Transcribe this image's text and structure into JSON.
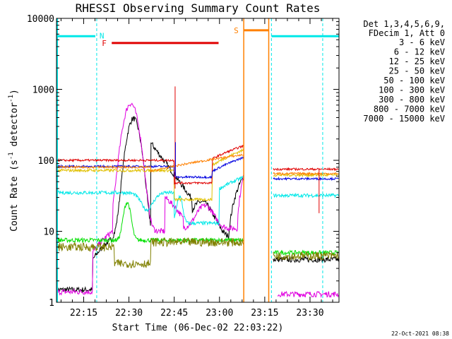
{
  "chart_data": {
    "type": "line",
    "title": "RHESSI Observing Summary Count Rates",
    "xlabel": "Start Time (06-Dec-02 22:03:22)",
    "ylabel": "Count Rate (s⁻¹ detector⁻¹)",
    "ylabel_parts": {
      "base": "Count Rate (s",
      "sup1": "-1",
      "mid": " detector",
      "sup2": "-1",
      "end": ")"
    },
    "yscale": "log",
    "ylim": [
      1,
      10000
    ],
    "xlim_minutes": [
      22.1,
      23.66
    ],
    "x_ticks": [
      {
        "label": "22:15",
        "m": 22.25
      },
      {
        "label": "22:30",
        "m": 22.5
      },
      {
        "label": "22:45",
        "m": 22.75
      },
      {
        "label": "23:00",
        "m": 23.0
      },
      {
        "label": "23:15",
        "m": 23.25
      },
      {
        "label": "23:30",
        "m": 23.5
      }
    ],
    "y_ticks": [
      {
        "label": "1",
        "v": 1
      },
      {
        "label": "10",
        "v": 10
      },
      {
        "label": "100",
        "v": 100
      },
      {
        "label": "1000",
        "v": 1000
      },
      {
        "label": "10000",
        "v": 10000
      }
    ],
    "legend_header": [
      "Det 1,3,4,5,6,9,",
      "FDecim 1, Att 0"
    ],
    "legend_placement": "right",
    "series": [
      {
        "name": "3 - 6 keV",
        "color": "#000000"
      },
      {
        "name": "6 - 12 keV",
        "color": "#e000e0"
      },
      {
        "name": "12 - 25 keV",
        "color": "#00e000"
      },
      {
        "name": "25 - 50 keV",
        "color": "#00e8e8"
      },
      {
        "name": "50 - 100 keV",
        "color": "#e0c000"
      },
      {
        "name": "100 - 300 keV",
        "color": "#e00000"
      },
      {
        "name": "300 - 800 keV",
        "color": "#0000e0"
      },
      {
        "name": "800 - 7000 keV",
        "color": "#ff8000"
      },
      {
        "name": "7000 - 15000 keV",
        "color": "#808000"
      }
    ],
    "flags": [
      {
        "label": "N",
        "color": "#00e8e8",
        "note": "night"
      },
      {
        "label": "F",
        "color": "#e00000",
        "note": "flare"
      },
      {
        "label": "S",
        "color": "#ff8000",
        "note": "SAA"
      }
    ]
  },
  "footer": {
    "timestamp": "22-Oct-2021 08:38"
  }
}
